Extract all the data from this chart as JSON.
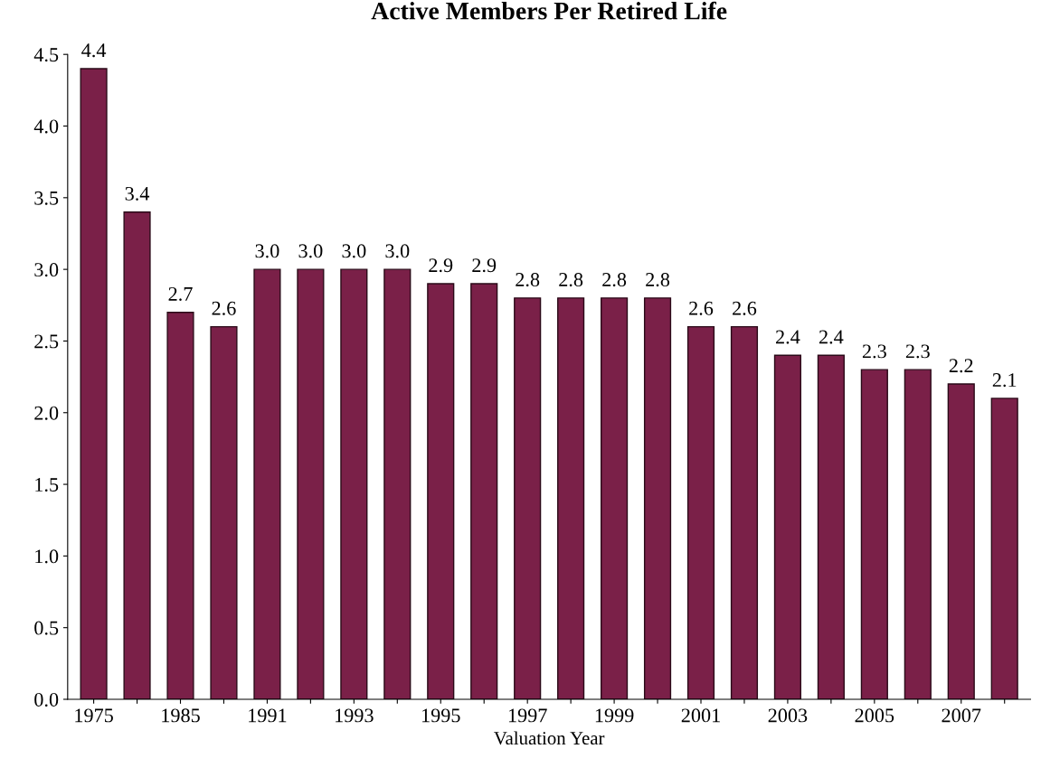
{
  "chart_data": {
    "type": "bar",
    "title": "Active Members Per Retired Life",
    "xlabel": "Valuation Year",
    "categories": [
      "1975",
      null,
      "1985",
      null,
      "1991",
      null,
      "1993",
      null,
      "1995",
      null,
      "1997",
      null,
      "1999",
      null,
      "2001",
      null,
      "2003",
      null,
      "2005",
      null,
      "2007",
      null
    ],
    "values": [
      4.4,
      3.4,
      2.7,
      2.6,
      3.0,
      3.0,
      3.0,
      3.0,
      2.9,
      2.9,
      2.8,
      2.8,
      2.8,
      2.8,
      2.6,
      2.6,
      2.4,
      2.4,
      2.3,
      2.3,
      2.2,
      2.1
    ],
    "color": "#7a2048",
    "ylim": [
      0,
      4.5
    ],
    "yticks": [
      {
        "value": 0,
        "label": "0.0"
      },
      {
        "value": 0.5,
        "label": "0.5"
      },
      {
        "value": 1,
        "label": "1.0"
      },
      {
        "value": 1.5,
        "label": "1.5"
      },
      {
        "value": 2,
        "label": "2.0"
      },
      {
        "value": 2.5,
        "label": "2.5"
      },
      {
        "value": 3,
        "label": "3.0"
      },
      {
        "value": 3.5,
        "label": "3.5"
      },
      {
        "value": 4,
        "label": "4.0"
      },
      {
        "value": 4.5,
        "label": "4.5"
      }
    ],
    "value_labels": [
      "4.4",
      "3.4",
      "2.7",
      "2.6",
      "3.0",
      "3.0",
      "3.0",
      "3.0",
      "2.9",
      "2.9",
      "2.8",
      "2.8",
      "2.8",
      "2.8",
      "2.6",
      "2.6",
      "2.4",
      "2.4",
      "2.3",
      "2.3",
      "2.2",
      "2.1"
    ],
    "grid": false,
    "legend": false
  }
}
